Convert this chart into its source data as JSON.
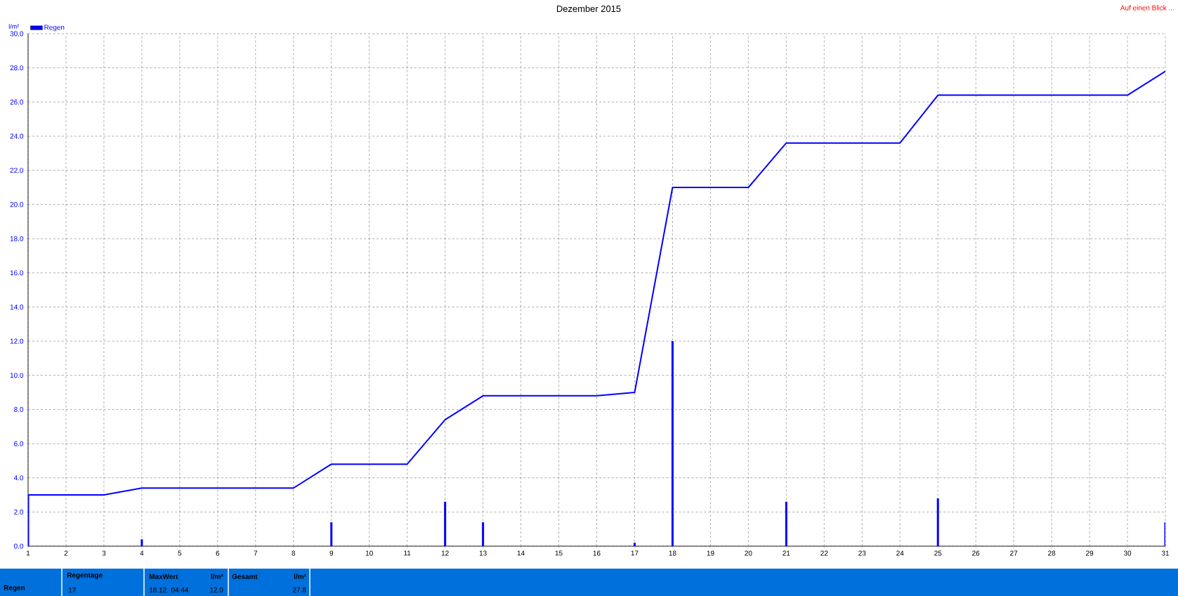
{
  "chart_data": {
    "type": "bar",
    "title": "Dezember 2015",
    "ylabel": "l/m²",
    "series": [
      {
        "name": "Regen",
        "color": "#0000ff",
        "x": [
          1,
          4,
          9,
          12,
          13,
          17,
          18,
          21,
          25,
          31
        ],
        "values": [
          3.0,
          0.4,
          1.4,
          2.6,
          1.4,
          0.2,
          12.0,
          2.6,
          2.8,
          1.4
        ]
      },
      {
        "type": "line",
        "color": "#0000ff",
        "x": [
          1,
          3,
          4,
          8,
          9,
          11,
          12,
          13,
          16,
          17,
          18,
          20,
          21,
          24,
          25,
          30,
          31
        ],
        "values": [
          3.0,
          3.0,
          3.4,
          3.4,
          4.8,
          4.8,
          7.4,
          8.8,
          8.8,
          9.0,
          21.0,
          21.0,
          23.6,
          23.6,
          26.4,
          26.4,
          27.8
        ]
      }
    ],
    "xlim": [
      1,
      31
    ],
    "xticks": [
      1,
      2,
      3,
      4,
      5,
      6,
      7,
      8,
      9,
      10,
      11,
      12,
      13,
      14,
      15,
      16,
      17,
      18,
      19,
      20,
      21,
      22,
      23,
      24,
      25,
      26,
      27,
      28,
      29,
      30,
      31
    ],
    "ylim": [
      0,
      30
    ],
    "yticks": [
      {
        "value": 0,
        "label": "0.0"
      },
      {
        "value": 2,
        "label": "2.0"
      },
      {
        "value": 4,
        "label": "4.0"
      },
      {
        "value": 6,
        "label": "6.0"
      },
      {
        "value": 8,
        "label": "8.0"
      },
      {
        "value": 10,
        "label": "10.0"
      },
      {
        "value": 12,
        "label": "12.0"
      },
      {
        "value": 14,
        "label": "14.0"
      },
      {
        "value": 16,
        "label": "16.0"
      },
      {
        "value": 18,
        "label": "18.0"
      },
      {
        "value": 20,
        "label": "20.0"
      },
      {
        "value": 22,
        "label": "22.0"
      },
      {
        "value": 24,
        "label": "24.0"
      },
      {
        "value": 26,
        "label": "26.0"
      },
      {
        "value": 28,
        "label": "28.0"
      },
      {
        "value": 30,
        "label": "30.0"
      }
    ],
    "grid": true,
    "legend": "top left",
    "annotations": [
      "Auf einen Blick ...",
      "Regen",
      "Regentage",
      "17",
      "MaxWert",
      "l/m²",
      "18.12.  04:44",
      "12.0",
      "Gesamt",
      "l/m²",
      "27.8"
    ]
  }
}
